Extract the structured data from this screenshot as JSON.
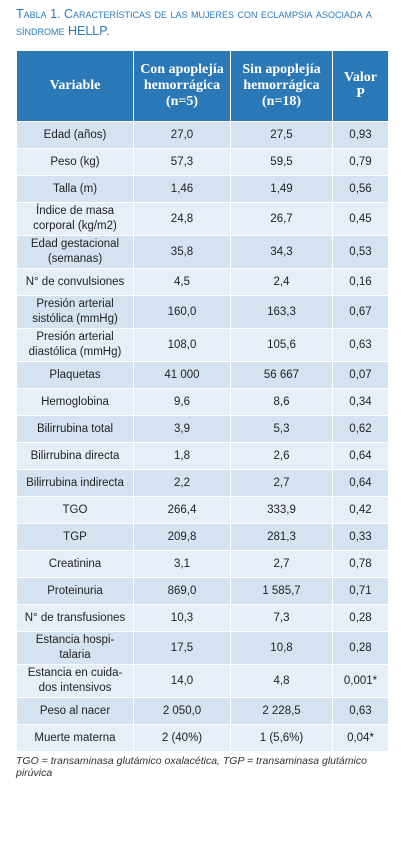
{
  "title": "Tabla 1. Características de las mujeres con eclampsia asociada a síndrome HELLP.",
  "table": {
    "header": [
      "Variable",
      "Con apoplejía\nhemorrágica\n(n=5)",
      "Sin apoplejía\nhemorrágica\n(n=18)",
      "Valor\nP"
    ],
    "rows": [
      [
        "Edad (años)",
        "27,0",
        "27,5",
        "0,93"
      ],
      [
        "Peso (kg)",
        "57,3",
        "59,5",
        "0,79"
      ],
      [
        "Talla (m)",
        "1,46",
        "1,49",
        "0,56"
      ],
      [
        "Índice de masa\ncorporal (kg/m2)",
        "24,8",
        "26,7",
        "0,45"
      ],
      [
        "Edad gestacional\n(semanas)",
        "35,8",
        "34,3",
        "0,53"
      ],
      [
        "N° de convulsiones",
        "4,5",
        "2,4",
        "0,16"
      ],
      [
        "Presión arterial\nsistólica (mmHg)",
        "160,0",
        "163,3",
        "0,67"
      ],
      [
        "Presión arterial\ndiastólica (mmHg)",
        "108,0",
        "105,6",
        "0,63"
      ],
      [
        "Plaquetas",
        "41 000",
        "56 667",
        "0,07"
      ],
      [
        "Hemoglobina",
        "9,6",
        "8,6",
        "0,34"
      ],
      [
        "Bilirrubina total",
        "3,9",
        "5,3",
        "0,62"
      ],
      [
        "Bilirrubina directa",
        "1,8",
        "2,6",
        "0,64"
      ],
      [
        "Bilirrubina indirecta",
        "2,2",
        "2,7",
        "0,64"
      ],
      [
        "TGO",
        "266,4",
        "333,9",
        "0,42"
      ],
      [
        "TGP",
        "209,8",
        "281,3",
        "0,33"
      ],
      [
        "Creatinina",
        "3,1",
        "2,7",
        "0,78"
      ],
      [
        "Proteinuria",
        "869,0",
        "1 585,7",
        "0,71"
      ],
      [
        "N° de transfusiones",
        "10,3",
        "7,3",
        "0,28"
      ],
      [
        "Estancia hospi-\ntalaria",
        "17,5",
        "10,8",
        "0,28"
      ],
      [
        "Estancia en cuida-\ndos intensivos",
        "14,0",
        "4,8",
        "0,001*"
      ],
      [
        "Peso al nacer",
        "2 050,0",
        "2 228,5",
        "0,63"
      ],
      [
        "Muerte materna",
        "2 (40%)",
        "1 (5,6%)",
        "0,04*"
      ]
    ]
  },
  "footnote": "TGO = transaminasa glutámico oxalacética, TGP = transaminasa glutámico\npirúvica"
}
